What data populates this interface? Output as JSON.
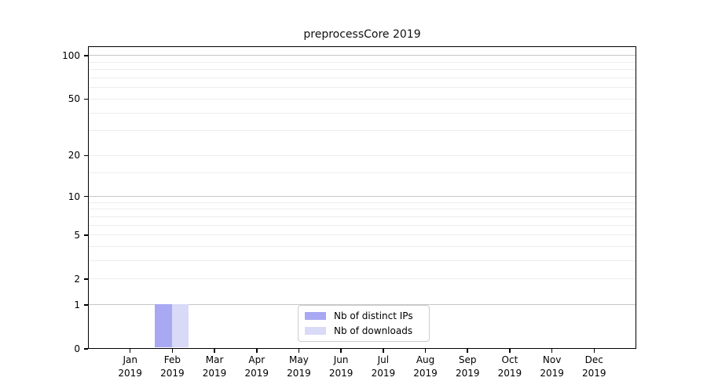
{
  "chart_data": {
    "type": "bar",
    "title": "preprocessCore 2019",
    "categories": [
      "Jan",
      "Feb",
      "Mar",
      "Apr",
      "May",
      "Jun",
      "Jul",
      "Aug",
      "Sep",
      "Oct",
      "Nov",
      "Dec"
    ],
    "x_tick_sublabel": "2019",
    "series": [
      {
        "name": "Nb of distinct IPs",
        "color": "#a8a8f3",
        "values": [
          0,
          1,
          0,
          0,
          0,
          0,
          0,
          0,
          0,
          0,
          0,
          0
        ]
      },
      {
        "name": "Nb of downloads",
        "color": "#d9d9f8",
        "values": [
          0,
          1,
          0,
          0,
          0,
          0,
          0,
          0,
          0,
          0,
          0,
          0
        ]
      }
    ],
    "xlabel": "",
    "ylabel": "",
    "yscale": "log1p",
    "ylim": [
      0,
      115
    ],
    "yticks": [
      0,
      1,
      2,
      5,
      10,
      20,
      50,
      100
    ],
    "gridlines_major": [
      1,
      10,
      100
    ],
    "gridlines_minor": [
      2,
      3,
      4,
      5,
      6,
      7,
      8,
      9,
      15,
      20,
      30,
      40,
      50,
      60,
      70,
      80,
      90
    ],
    "grid": true,
    "legend": {
      "position": "bottom-center",
      "entries": [
        "Nb of distinct IPs",
        "Nb of downloads"
      ]
    }
  },
  "colors": {
    "background": "#ffffff",
    "axis": "#000000",
    "grid_major": "#c6c6c6",
    "grid_minor": "#ededed",
    "legend_border": "#cccccc",
    "bar_distinct_ips": "#a8a8f3",
    "bar_downloads": "#d9d9f8",
    "text": "#000000"
  }
}
